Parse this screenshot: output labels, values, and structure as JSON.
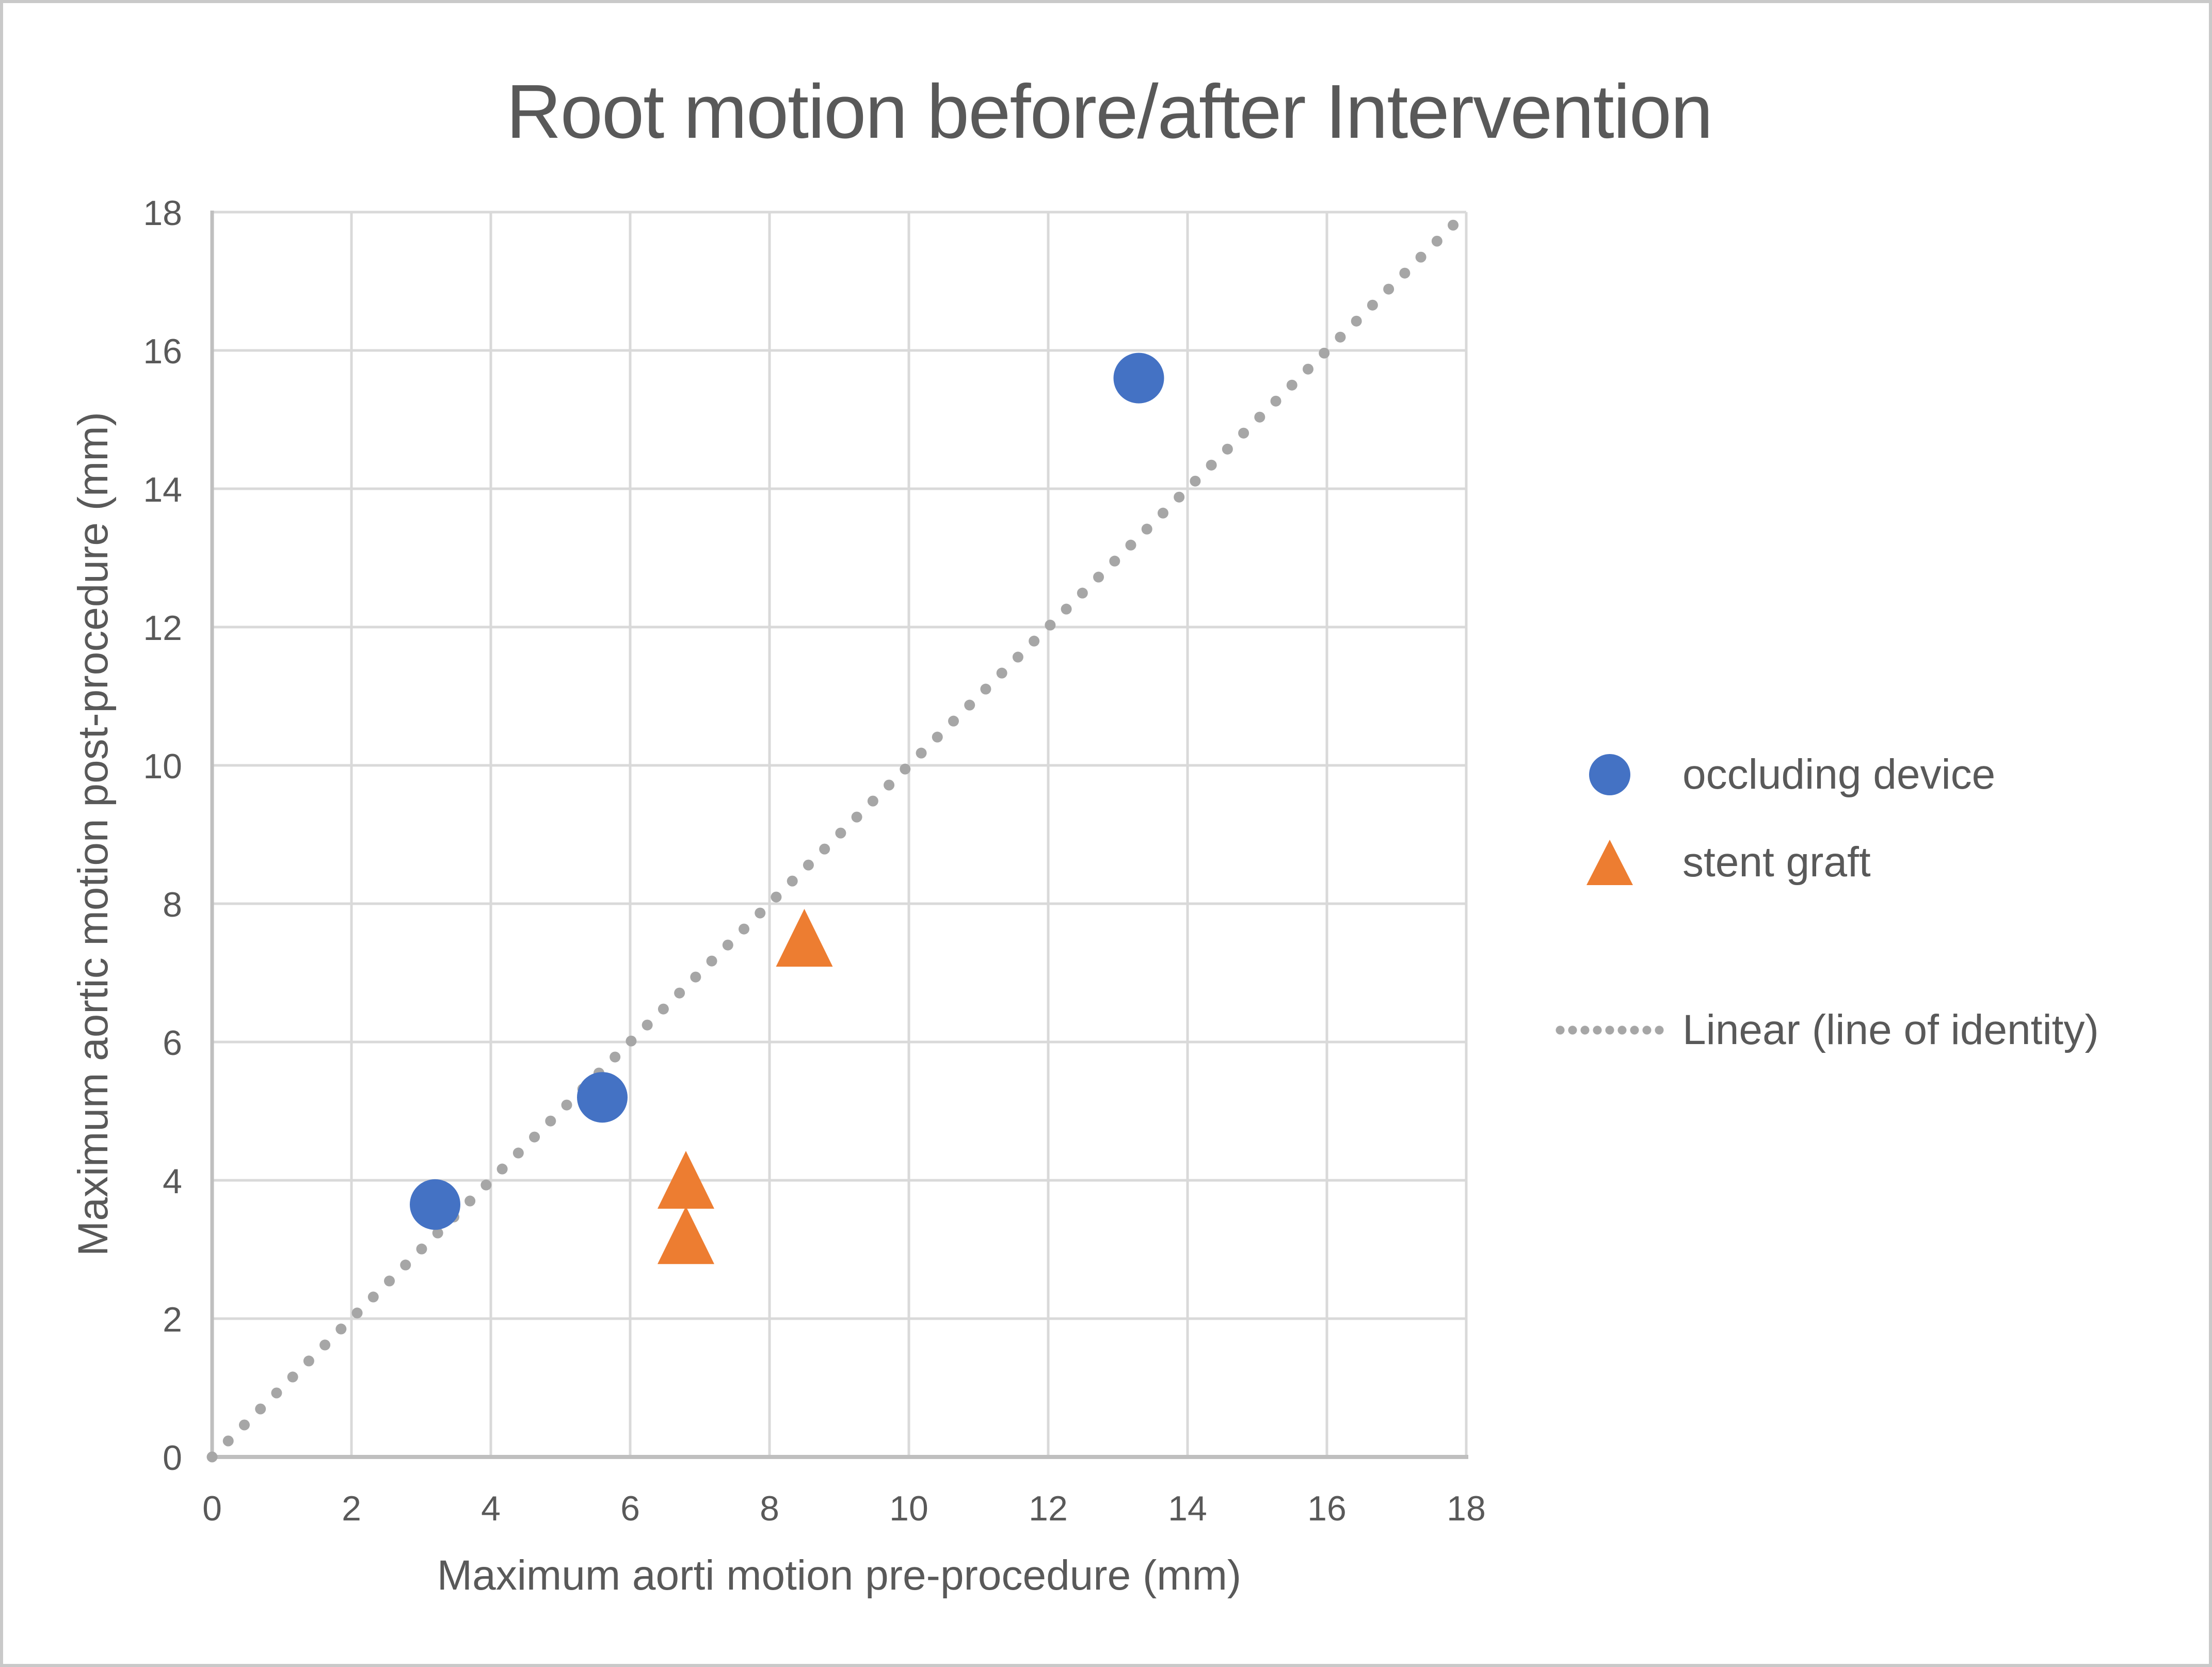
{
  "chart_data": {
    "type": "scatter",
    "title": "Root motion before/after Intervention",
    "xlabel": "Maximum aorti motion pre-procedure (mm)",
    "ylabel": "Maximum aortic motion post-procedure (mm)",
    "xlim": [
      0,
      18
    ],
    "ylim": [
      0,
      18
    ],
    "xticks": [
      0,
      2,
      4,
      6,
      8,
      10,
      12,
      14,
      16,
      18
    ],
    "yticks": [
      0,
      2,
      4,
      6,
      8,
      10,
      12,
      14,
      16,
      18
    ],
    "grid": true,
    "legend_position": "right",
    "series": [
      {
        "name": "occluding device",
        "marker": "circle",
        "color": "#4472C4",
        "points": [
          [
            3.2,
            3.65
          ],
          [
            5.6,
            5.2
          ],
          [
            13.3,
            15.6
          ]
        ]
      },
      {
        "name": "stent graft",
        "marker": "triangle",
        "color": "#ED7D31",
        "points": [
          [
            6.8,
            4.0
          ],
          [
            6.8,
            3.2
          ],
          [
            8.5,
            7.5
          ]
        ]
      }
    ],
    "reference_line": {
      "name": "Linear (line of identity)",
      "style": "dotted",
      "color": "#A6A6A6",
      "from": [
        0,
        0
      ],
      "to": [
        18,
        18
      ]
    }
  },
  "colors": {
    "text": "#595959",
    "gridline": "#D9D9D9",
    "axis_line": "#BFBFBF",
    "background": "#FFFFFF",
    "page_border": "#C9C9C9"
  }
}
